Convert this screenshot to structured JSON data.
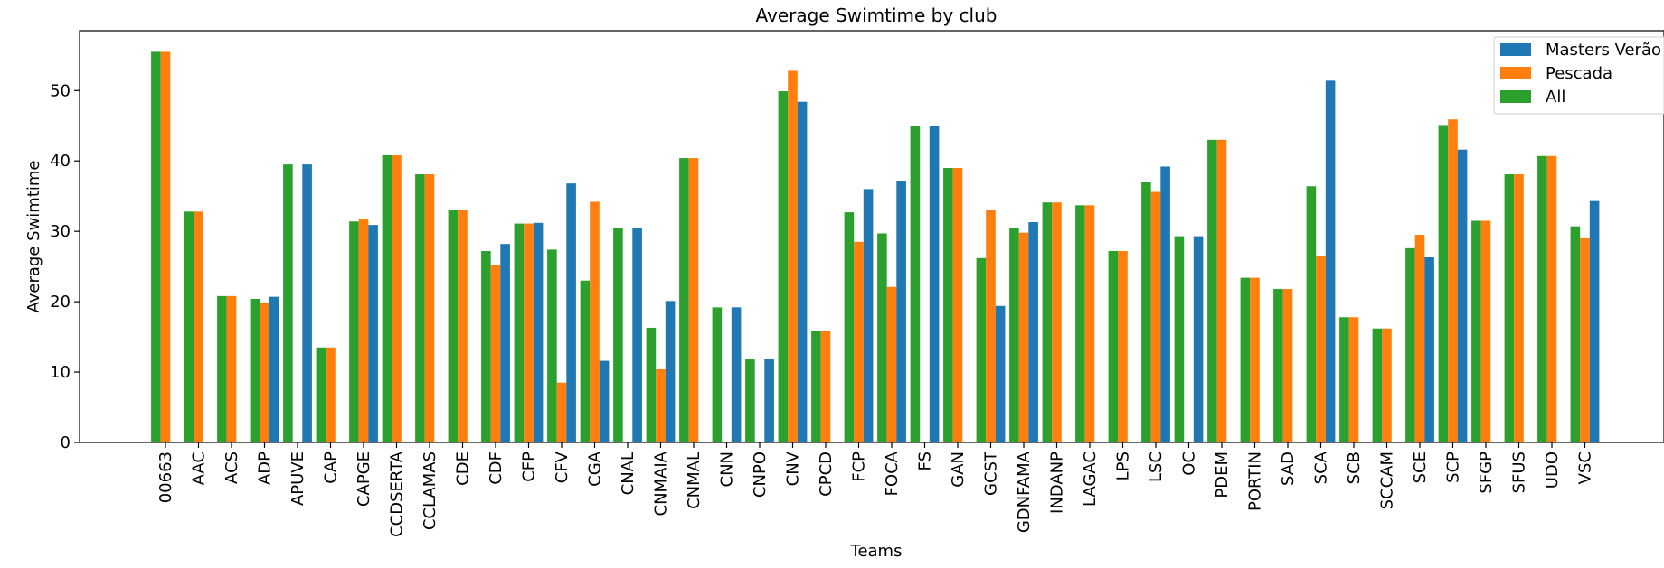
{
  "chart_data": {
    "type": "bar",
    "title": "Average Swimtime by club",
    "xlabel": "Teams",
    "ylabel": "Average Swimtime",
    "ylim": [
      0,
      58.5
    ],
    "yticks": [
      0,
      10,
      20,
      30,
      40,
      50
    ],
    "grid": false,
    "legend_position": "top-right",
    "categories": [
      "00663",
      "AAC",
      "ACS",
      "ADP",
      "APUVE",
      "CAP",
      "CAPGE",
      "CCDSERTA",
      "CCLAMAS",
      "CDE",
      "CDF",
      "CFP",
      "CFV",
      "CGA",
      "CNAL",
      "CNMAIA",
      "CNMAL",
      "CNN",
      "CNPO",
      "CNV",
      "CPCD",
      "FCP",
      "FOCA",
      "FS",
      "GAN",
      "GCST",
      "GDNFAMA",
      "INDANP",
      "LAGAC",
      "LPS",
      "LSC",
      "OC",
      "PDEM",
      "PORTIN",
      "SAD",
      "SCA",
      "SCB",
      "SCCAM",
      "SCE",
      "SCP",
      "SFGP",
      "SFUS",
      "UDO",
      "VSC"
    ],
    "series": [
      {
        "name": "Masters Verão",
        "color": "#1f77b4",
        "values": [
          null,
          null,
          null,
          20.7,
          39.5,
          null,
          30.9,
          null,
          null,
          null,
          28.2,
          31.2,
          36.8,
          11.6,
          30.5,
          20.1,
          null,
          19.2,
          11.8,
          48.4,
          null,
          36.0,
          37.2,
          45.0,
          null,
          19.4,
          31.3,
          null,
          null,
          null,
          39.2,
          29.3,
          null,
          null,
          null,
          51.4,
          null,
          null,
          26.3,
          41.6,
          null,
          null,
          null,
          34.3
        ]
      },
      {
        "name": "Pescada",
        "color": "#ff7f0e",
        "values": [
          55.5,
          32.8,
          20.8,
          19.9,
          null,
          13.5,
          31.8,
          40.8,
          38.1,
          33.0,
          25.2,
          31.1,
          8.5,
          34.2,
          null,
          10.4,
          40.4,
          null,
          null,
          52.8,
          15.8,
          28.5,
          22.1,
          null,
          39.0,
          33.0,
          29.8,
          34.1,
          33.7,
          27.2,
          35.6,
          null,
          43.0,
          23.4,
          21.8,
          26.5,
          17.8,
          16.2,
          29.5,
          45.9,
          31.5,
          38.1,
          40.7,
          29.0
        ]
      },
      {
        "name": "All",
        "color": "#2ca02c",
        "values": [
          55.5,
          32.8,
          20.8,
          20.4,
          39.5,
          13.5,
          31.4,
          40.8,
          38.1,
          33.0,
          27.2,
          31.1,
          27.4,
          23.0,
          30.5,
          16.3,
          40.4,
          19.2,
          11.8,
          49.9,
          15.8,
          32.7,
          29.7,
          45.0,
          39.0,
          26.2,
          30.5,
          34.1,
          33.7,
          27.2,
          37.0,
          29.3,
          43.0,
          23.4,
          21.8,
          36.4,
          17.8,
          16.2,
          27.6,
          45.1,
          31.5,
          38.1,
          40.7,
          30.7
        ]
      }
    ]
  }
}
